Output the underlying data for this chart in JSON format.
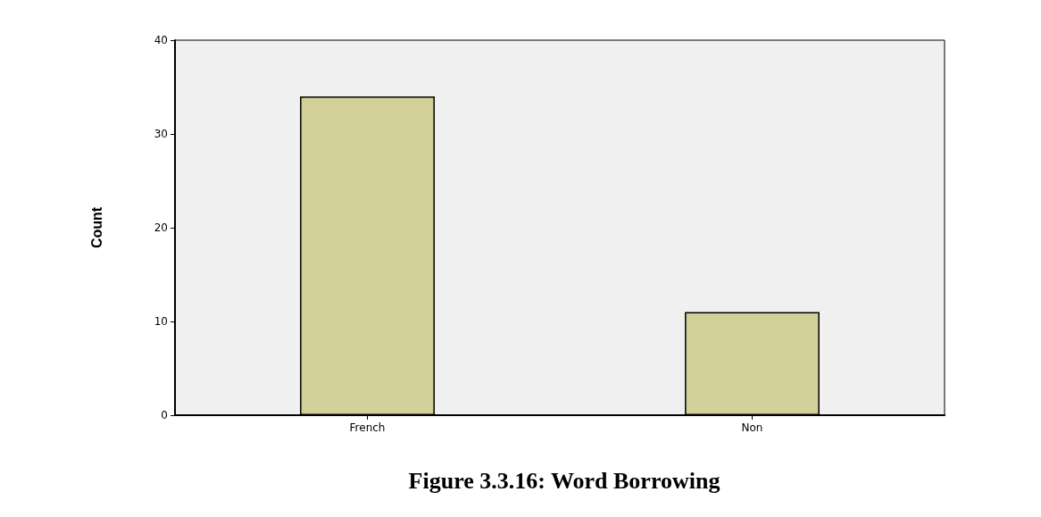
{
  "chart_data": {
    "type": "bar",
    "title": "Figure 3.3.16: Word Borrowing",
    "ylabel": "Count",
    "categories": [
      "French",
      "Non"
    ],
    "values": [
      34,
      11
    ],
    "color": "#d3cf98",
    "ylim": [
      0,
      40
    ],
    "yticks": [
      0,
      10,
      20,
      30,
      40
    ],
    "grid": false
  }
}
